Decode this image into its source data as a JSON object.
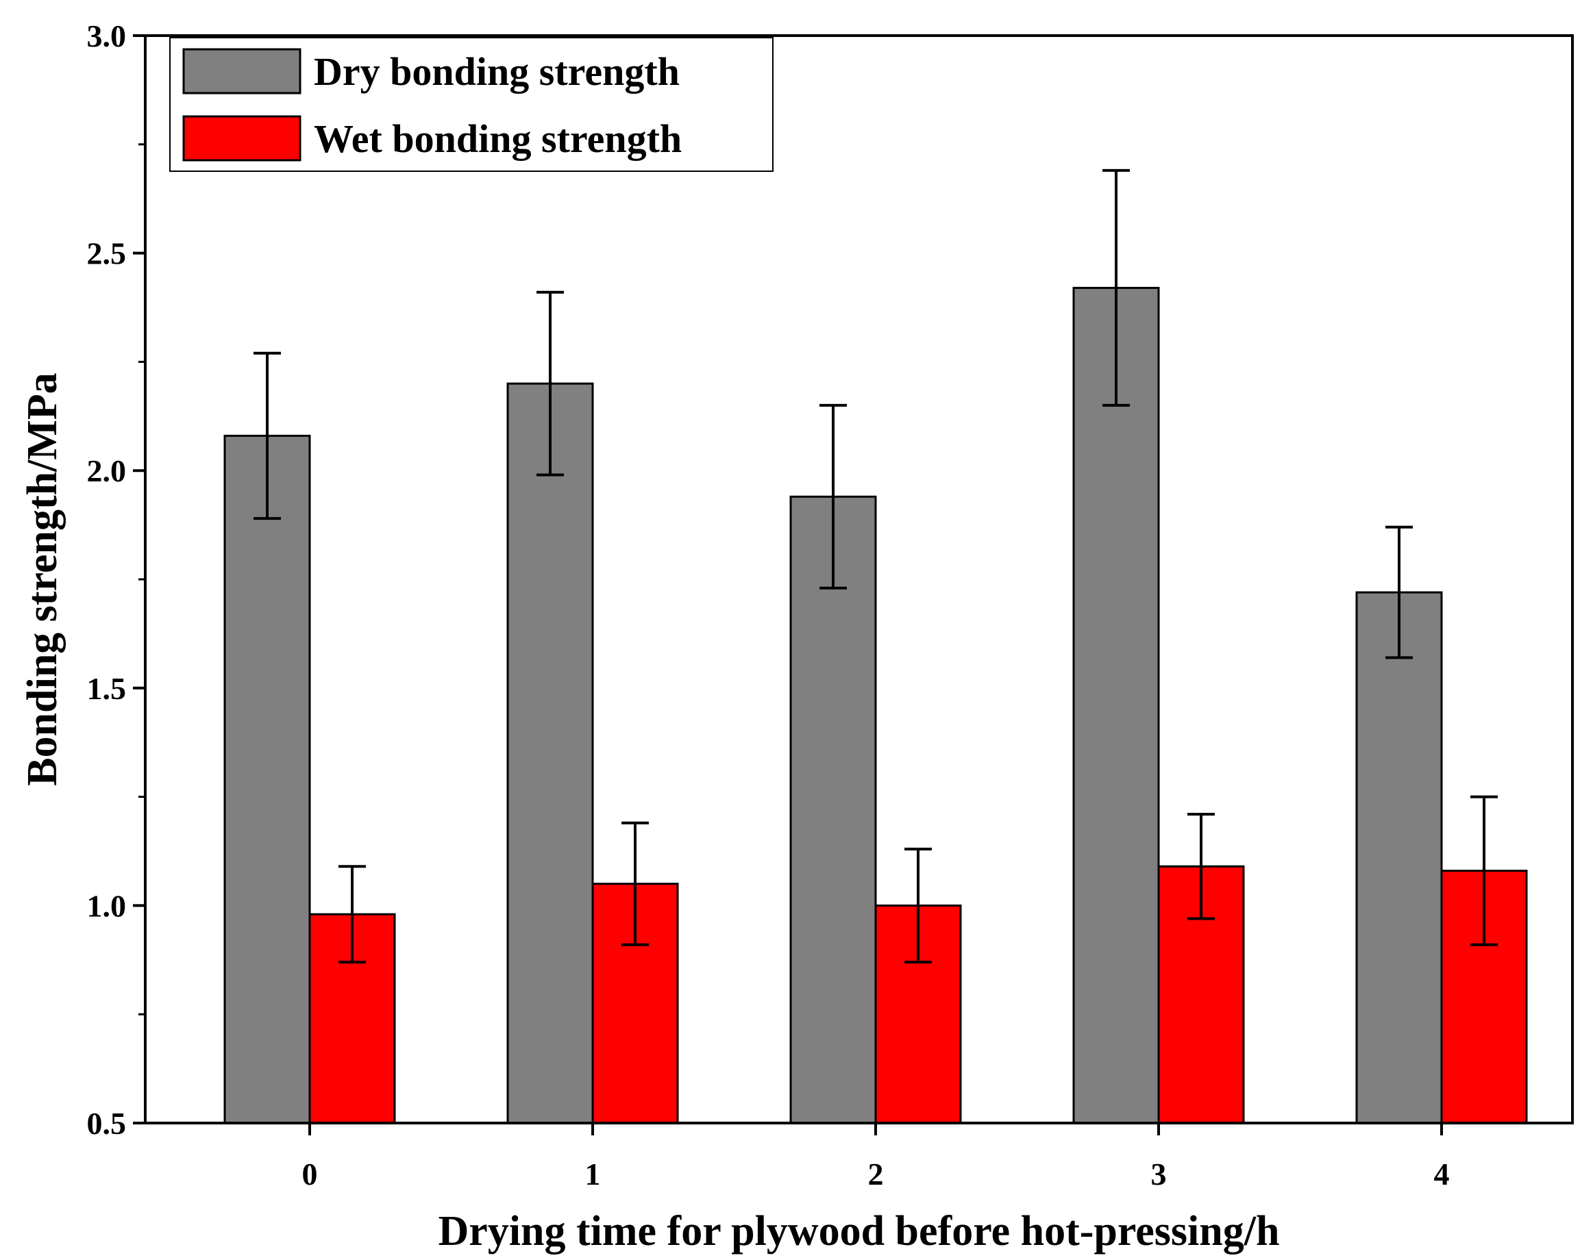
{
  "chart_data": {
    "type": "bar",
    "title": "",
    "xlabel": "Drying time for plywood before hot-pressing/h",
    "ylabel": "Bonding strength/MPa",
    "categories": [
      "0",
      "1",
      "2",
      "3",
      "4"
    ],
    "ylim": [
      0.5,
      3.0
    ],
    "yticks": [
      "0.5",
      "1.0",
      "1.5",
      "2.0",
      "2.5",
      "3.0"
    ],
    "ytick_values": [
      0.5,
      1.0,
      1.5,
      2.0,
      2.5,
      3.0
    ],
    "grid": false,
    "legend_position": "top-left",
    "series": [
      {
        "name": "Dry bonding strength",
        "color": "#808080",
        "values": [
          2.08,
          2.2,
          1.94,
          2.42,
          1.72
        ],
        "error": [
          0.19,
          0.21,
          0.21,
          0.27,
          0.15
        ]
      },
      {
        "name": "Wet bonding strength",
        "color": "#ff0000",
        "values": [
          0.98,
          1.05,
          1.0,
          1.09,
          1.08
        ],
        "error": [
          0.11,
          0.14,
          0.13,
          0.12,
          0.17
        ]
      }
    ]
  }
}
